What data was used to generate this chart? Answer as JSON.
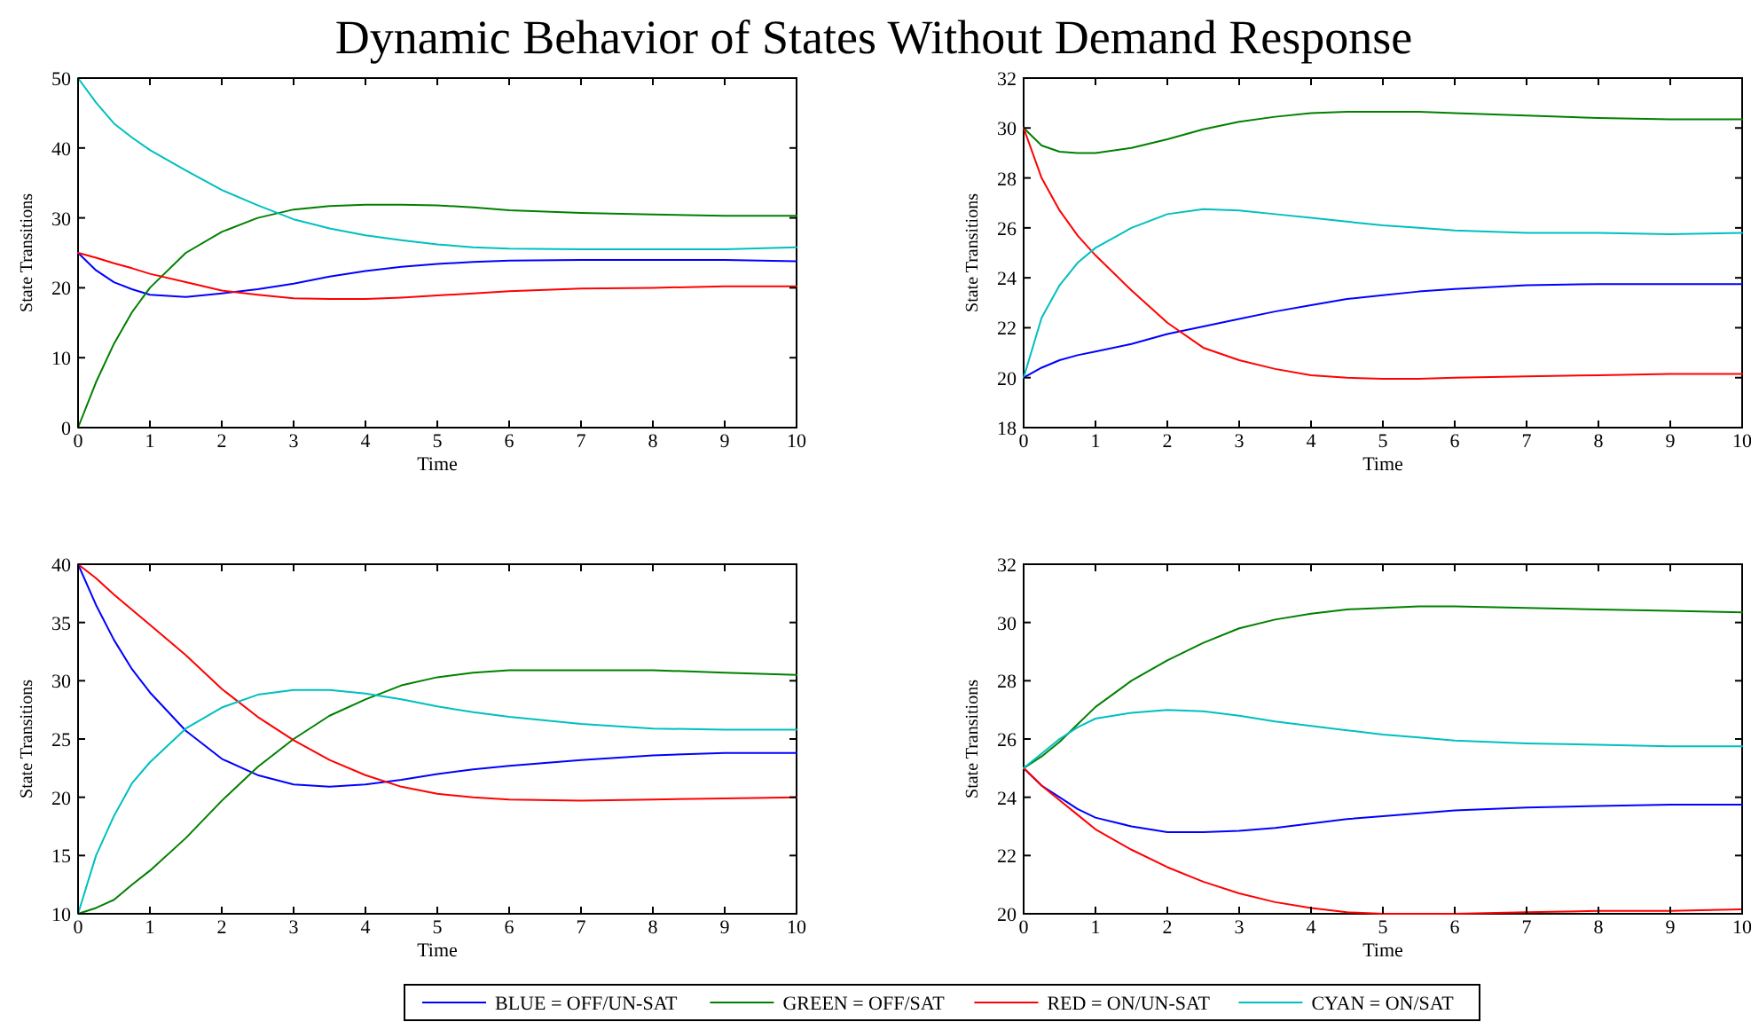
{
  "chart_data": [
    {
      "type": "line",
      "title": "Dynamic Behavior of States Without Demand Response",
      "xlabel": "Time",
      "ylabel": "State Transitions",
      "xlim": [
        0,
        10
      ],
      "xticks": [
        0,
        1,
        2,
        3,
        4,
        5,
        6,
        7,
        8,
        9,
        10
      ],
      "ylim": [
        0,
        50
      ],
      "yticks": [
        0,
        10,
        20,
        30,
        40,
        50
      ],
      "grid": false,
      "marker": "none",
      "line_style": "solid",
      "legend": "bottom",
      "x": [
        0,
        0.25,
        0.5,
        0.75,
        1,
        1.5,
        2,
        2.5,
        3,
        3.5,
        4,
        4.5,
        5,
        5.5,
        6,
        7,
        8,
        9,
        10
      ],
      "series": [
        {
          "name": "BLUE = OFF/UN-SAT",
          "color": "#0000ff",
          "values": [
            25,
            22.5,
            20.8,
            19.8,
            19,
            18.7,
            19.2,
            19.8,
            20.6,
            21.6,
            22.4,
            23,
            23.4,
            23.7,
            23.9,
            24,
            24,
            24,
            23.8
          ]
        },
        {
          "name": "GREEN = OFF/SAT",
          "color": "#008000",
          "values": [
            0,
            6.5,
            12,
            16.5,
            20,
            25,
            28,
            30,
            31.2,
            31.7,
            31.9,
            31.9,
            31.8,
            31.5,
            31.1,
            30.7,
            30.5,
            30.3,
            30.3
          ]
        },
        {
          "name": "RED = ON/UN-SAT",
          "color": "#ff0000",
          "values": [
            25,
            24.3,
            23.5,
            22.8,
            22,
            20.8,
            19.6,
            19,
            18.5,
            18.4,
            18.4,
            18.6,
            18.9,
            19.2,
            19.5,
            19.9,
            20,
            20.2,
            20.2
          ]
        },
        {
          "name": "CYAN = ON/SAT",
          "color": "#00bfbf",
          "values": [
            50,
            46.5,
            43.5,
            41.5,
            39.7,
            36.8,
            34,
            31.8,
            29.8,
            28.5,
            27.5,
            26.8,
            26.2,
            25.8,
            25.6,
            25.5,
            25.5,
            25.5,
            25.8
          ]
        }
      ]
    },
    {
      "type": "line",
      "xlabel": "Time",
      "ylabel": "State Transitions",
      "xlim": [
        0,
        10
      ],
      "xticks": [
        0,
        1,
        2,
        3,
        4,
        5,
        6,
        7,
        8,
        9,
        10
      ],
      "ylim": [
        18,
        32
      ],
      "yticks": [
        18,
        20,
        22,
        24,
        26,
        28,
        30,
        32
      ],
      "grid": false,
      "marker": "none",
      "line_style": "solid",
      "x": [
        0,
        0.25,
        0.5,
        0.75,
        1,
        1.5,
        2,
        2.5,
        3,
        3.5,
        4,
        4.5,
        5,
        5.5,
        6,
        7,
        8,
        9,
        10
      ],
      "series": [
        {
          "color": "#0000ff",
          "values": [
            20,
            20.4,
            20.7,
            20.9,
            21.05,
            21.35,
            21.75,
            22.05,
            22.35,
            22.65,
            22.9,
            23.15,
            23.3,
            23.45,
            23.55,
            23.7,
            23.75,
            23.75,
            23.75
          ]
        },
        {
          "color": "#008000",
          "values": [
            30,
            29.3,
            29.05,
            29,
            29,
            29.2,
            29.55,
            29.95,
            30.25,
            30.45,
            30.6,
            30.65,
            30.65,
            30.65,
            30.6,
            30.5,
            30.4,
            30.35,
            30.35
          ]
        },
        {
          "color": "#ff0000",
          "values": [
            30,
            28,
            26.7,
            25.7,
            24.9,
            23.5,
            22.2,
            21.2,
            20.7,
            20.35,
            20.1,
            20,
            19.95,
            19.95,
            20,
            20.05,
            20.1,
            20.15,
            20.15
          ]
        },
        {
          "color": "#00bfbf",
          "values": [
            20,
            22.4,
            23.7,
            24.6,
            25.2,
            26,
            26.55,
            26.75,
            26.7,
            26.55,
            26.4,
            26.25,
            26.1,
            26,
            25.9,
            25.8,
            25.8,
            25.75,
            25.8
          ]
        }
      ]
    },
    {
      "type": "line",
      "xlabel": "Time",
      "ylabel": "State Transitions",
      "xlim": [
        0,
        10
      ],
      "xticks": [
        0,
        1,
        2,
        3,
        4,
        5,
        6,
        7,
        8,
        9,
        10
      ],
      "ylim": [
        10,
        40
      ],
      "yticks": [
        10,
        15,
        20,
        25,
        30,
        35,
        40
      ],
      "grid": false,
      "marker": "none",
      "line_style": "solid",
      "x": [
        0,
        0.25,
        0.5,
        0.75,
        1,
        1.5,
        2,
        2.5,
        3,
        3.5,
        4,
        4.5,
        5,
        5.5,
        6,
        7,
        8,
        9,
        10
      ],
      "series": [
        {
          "color": "#0000ff",
          "values": [
            40,
            36.5,
            33.5,
            31,
            29,
            25.7,
            23.3,
            21.9,
            21.1,
            20.9,
            21.1,
            21.5,
            22,
            22.4,
            22.7,
            23.2,
            23.6,
            23.8,
            23.8
          ]
        },
        {
          "color": "#008000",
          "values": [
            10,
            10.5,
            11.2,
            12.5,
            13.7,
            16.5,
            19.7,
            22.6,
            25,
            27,
            28.4,
            29.6,
            30.3,
            30.7,
            30.9,
            30.9,
            30.9,
            30.7,
            30.5
          ]
        },
        {
          "color": "#ff0000",
          "values": [
            40,
            38.8,
            37.4,
            36.1,
            34.8,
            32.2,
            29.3,
            26.9,
            24.9,
            23.2,
            21.9,
            20.9,
            20.3,
            20,
            19.8,
            19.7,
            19.8,
            19.9,
            20
          ]
        },
        {
          "color": "#00bfbf",
          "values": [
            10,
            15,
            18.4,
            21.2,
            23,
            25.9,
            27.7,
            28.8,
            29.2,
            29.2,
            28.9,
            28.4,
            27.8,
            27.3,
            26.9,
            26.3,
            25.9,
            25.8,
            25.8
          ]
        }
      ]
    },
    {
      "type": "line",
      "xlabel": "Time",
      "ylabel": "State Transitions",
      "xlim": [
        0,
        10
      ],
      "xticks": [
        0,
        1,
        2,
        3,
        4,
        5,
        6,
        7,
        8,
        9,
        10
      ],
      "ylim": [
        20,
        32
      ],
      "yticks": [
        20,
        22,
        24,
        26,
        28,
        30,
        32
      ],
      "grid": false,
      "marker": "none",
      "line_style": "solid",
      "x": [
        0,
        0.25,
        0.5,
        0.75,
        1,
        1.5,
        2,
        2.5,
        3,
        3.5,
        4,
        4.5,
        5,
        5.5,
        6,
        7,
        8,
        9,
        10
      ],
      "series": [
        {
          "color": "#0000ff",
          "values": [
            25,
            24.4,
            24,
            23.6,
            23.3,
            23,
            22.8,
            22.8,
            22.85,
            22.95,
            23.1,
            23.25,
            23.35,
            23.45,
            23.55,
            23.65,
            23.7,
            23.75,
            23.75
          ]
        },
        {
          "color": "#008000",
          "values": [
            25,
            25.4,
            25.9,
            26.5,
            27.1,
            28,
            28.7,
            29.3,
            29.8,
            30.1,
            30.3,
            30.45,
            30.5,
            30.55,
            30.55,
            30.5,
            30.45,
            30.4,
            30.35
          ]
        },
        {
          "color": "#ff0000",
          "values": [
            25,
            24.4,
            23.9,
            23.4,
            22.9,
            22.2,
            21.6,
            21.1,
            20.7,
            20.4,
            20.2,
            20.05,
            20,
            20,
            20,
            20.05,
            20.1,
            20.1,
            20.15
          ]
        },
        {
          "color": "#00bfbf",
          "values": [
            25,
            25.5,
            26,
            26.4,
            26.7,
            26.9,
            27,
            26.95,
            26.8,
            26.6,
            26.45,
            26.3,
            26.15,
            26.05,
            25.95,
            25.85,
            25.8,
            25.75,
            25.75
          ]
        }
      ]
    }
  ]
}
